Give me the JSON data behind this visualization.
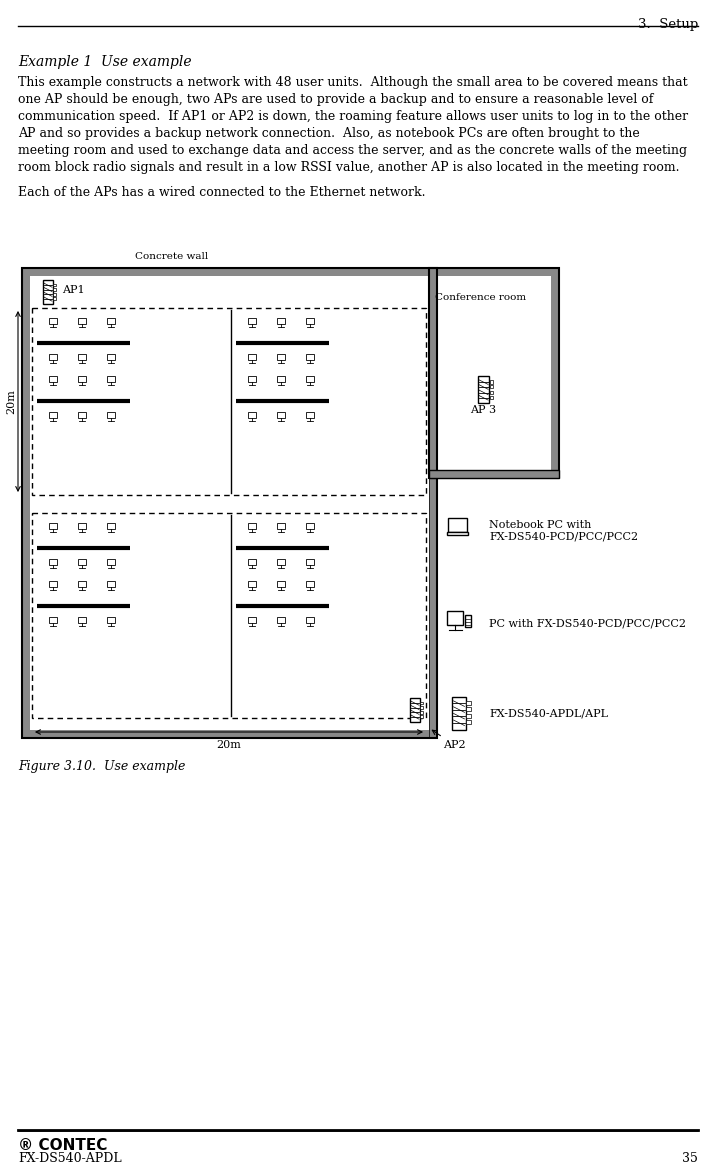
{
  "page_title": "3.  Setup",
  "page_number": "35",
  "product_name": "FX-DS540-APDL",
  "heading": "Example 1  Use example",
  "body_lines": [
    "This example constructs a network with 48 user units.  Although the small area to be covered means that",
    "one AP should be enough, two APs are used to provide a backup and to ensure a reasonable level of",
    "communication speed.  If AP1 or AP2 is down, the roaming feature allows user units to log in to the other",
    "AP and so provides a backup network connection.  Also, as notebook PCs are often brought to the",
    "meeting room and used to exchange data and access the server, and as the concrete walls of the meeting",
    "room block radio signals and result in a low RSSI value, another AP is also located in the meeting room.",
    "Each of the APs has a wired connected to the Ethernet network."
  ],
  "figure_caption": "Figure 3.10.  Use example",
  "concrete_wall_label": "Concrete wall",
  "conference_room_label": "Conference room",
  "ap1_label": "AP1",
  "ap2_label": "AP2",
  "ap3_label": "AP 3",
  "dim1_label": "20m",
  "dim2_label": "20m",
  "legend_nb": "Notebook PC with\nFX-DS540-PCD/PCC/PCC2",
  "legend_pc": "PC with FX-DS540-PCD/PCC/PCC2",
  "legend_ap": "FX-DS540-APDL/APL",
  "gray": "#888888",
  "black": "#000000",
  "white": "#ffffff"
}
